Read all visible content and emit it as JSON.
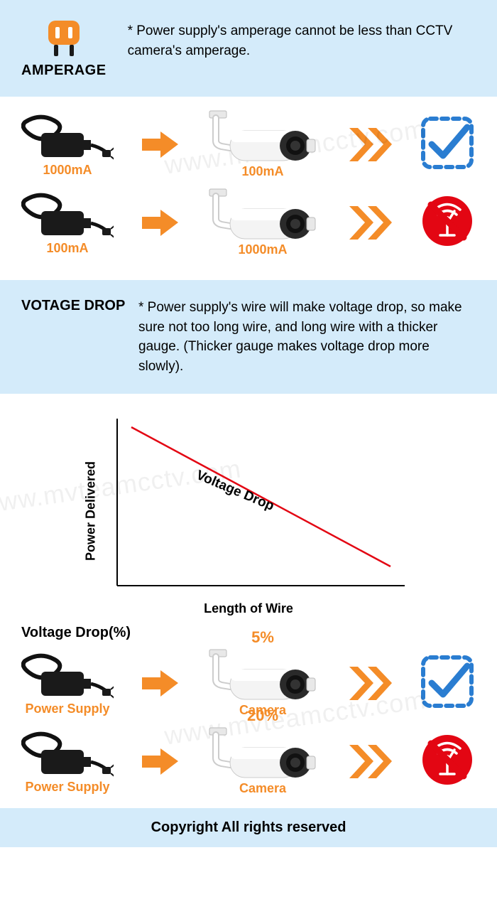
{
  "amperage": {
    "title": "AMPERAGE",
    "icon_color": "#f48c28",
    "note": "* Power supply's amperage cannot be less than CCTV camera's amperage.",
    "rows": [
      {
        "supply_label": "1000mA",
        "camera_label": "100mA",
        "result": "ok"
      },
      {
        "supply_label": "100mA",
        "camera_label": "1000mA",
        "result": "fail"
      }
    ]
  },
  "voltage": {
    "title": "VOTAGE DROP",
    "note": "* Power supply's wire will make voltage drop, so make sure not too long wire, and long wire with a thicker gauge. (Thicker gauge makes voltage drop more slowly)."
  },
  "chart": {
    "type": "line",
    "ylabel": "Power Delivered",
    "xlabel": "Length of Wire",
    "line_label": "Voltage Drop",
    "line_color": "#e30613",
    "axis_color": "#000000",
    "background_color": "#ffffff",
    "line_width": 2,
    "axis_width": 2,
    "xlim": [
      0,
      100
    ],
    "ylim": [
      0,
      100
    ],
    "points": [
      [
        5,
        95
      ],
      [
        95,
        12
      ]
    ],
    "label_fontsize": 18,
    "line_label_fontsize": 19
  },
  "drop_pct": {
    "title": "Voltage Drop(%)",
    "rows": [
      {
        "supply_label": "Power Supply",
        "camera_label": "Camera",
        "pct": "5%",
        "result": "ok"
      },
      {
        "supply_label": "Power Supply",
        "camera_label": "Camera",
        "pct": "20%",
        "result": "fail"
      }
    ]
  },
  "footer": "Copyright All rights reserved",
  "colors": {
    "section_bg": "#d4ebfa",
    "accent_orange": "#f48c28",
    "check_blue": "#2a7dd1",
    "fail_red": "#e30613",
    "text": "#000000"
  },
  "watermark": "www.mvteamcctv.com"
}
